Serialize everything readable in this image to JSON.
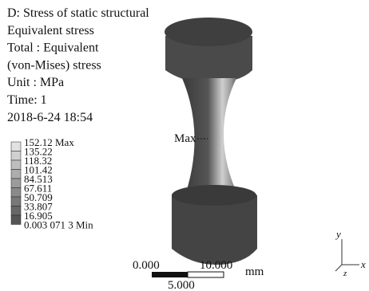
{
  "header": {
    "lines": [
      "D: Stress of static structural",
      "Equivalent stress",
      "Total : Equivalent",
      "(von-Mises) stress",
      "Unit : MPa",
      "Time: 1",
      "2018-6-24  18:54"
    ]
  },
  "legend": {
    "labels": [
      "152.12 Max",
      "135.22",
      "118.32",
      "101.42",
      "84.513",
      "67.611",
      "50.709",
      "33.807",
      "16.905",
      "0.003 071 3 Min"
    ]
  },
  "model": {
    "max_label": "Max"
  },
  "scale_bar": {
    "left": "0.000",
    "right": "10.000",
    "unit": "mm",
    "middle": "5.000"
  },
  "axes": {
    "y": "y",
    "x": "x",
    "z": "z"
  }
}
